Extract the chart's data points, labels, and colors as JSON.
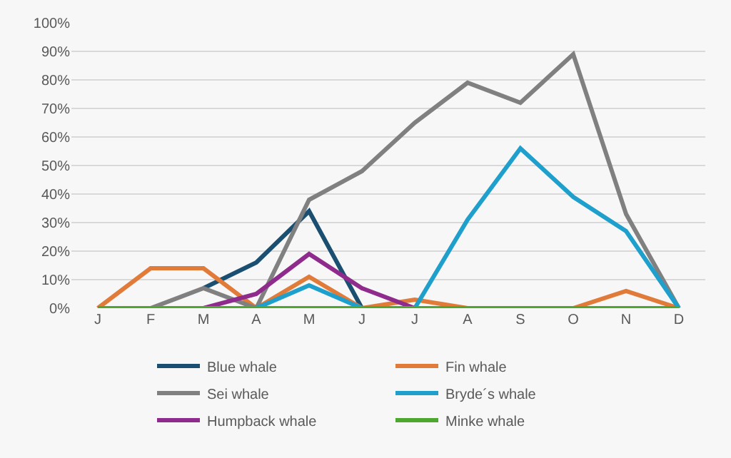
{
  "chart_data": {
    "type": "line",
    "categories": [
      "J",
      "F",
      "M",
      "A",
      "M",
      "J",
      "J",
      "A",
      "S",
      "O",
      "N",
      "D"
    ],
    "series": [
      {
        "name": "Blue whale",
        "color": "#1b4f72",
        "values": [
          null,
          null,
          7,
          16,
          34,
          0,
          null,
          null,
          null,
          null,
          null,
          null
        ]
      },
      {
        "name": "Fin whale",
        "color": "#e07b39",
        "values": [
          0,
          14,
          14,
          0,
          11,
          0,
          3,
          0,
          null,
          0,
          6,
          0
        ]
      },
      {
        "name": "Sei whale",
        "color": "#808080",
        "values": [
          null,
          0,
          7,
          0,
          38,
          48,
          65,
          79,
          72,
          89,
          33,
          0
        ]
      },
      {
        "name": "Bryde´s whale",
        "color": "#1f9fcb",
        "values": [
          null,
          null,
          null,
          0,
          8,
          0,
          0,
          31,
          56,
          39,
          27,
          0
        ]
      },
      {
        "name": "Humpback whale",
        "color": "#8e2b8c",
        "values": [
          null,
          null,
          0,
          5,
          19,
          7,
          0,
          null,
          null,
          null,
          null,
          null
        ]
      },
      {
        "name": "Minke whale",
        "color": "#4ea72e",
        "values": [
          0,
          0,
          0,
          0,
          0,
          0,
          0,
          0,
          0,
          0,
          0,
          0
        ]
      }
    ],
    "ylim": [
      0,
      100
    ],
    "yticks": [
      {
        "value": 0,
        "label": "0%"
      },
      {
        "value": 10,
        "label": "10%"
      },
      {
        "value": 20,
        "label": "20%"
      },
      {
        "value": 30,
        "label": "30%"
      },
      {
        "value": 40,
        "label": "40%"
      },
      {
        "value": 50,
        "label": "50%"
      },
      {
        "value": 60,
        "label": "60%"
      },
      {
        "value": 70,
        "label": "70%"
      },
      {
        "value": 80,
        "label": "80%"
      },
      {
        "value": 90,
        "label": "90%"
      },
      {
        "value": 100,
        "label": "100%"
      }
    ],
    "grid": "y",
    "legend": "bottom",
    "marker": "none",
    "line_style": "solid"
  }
}
